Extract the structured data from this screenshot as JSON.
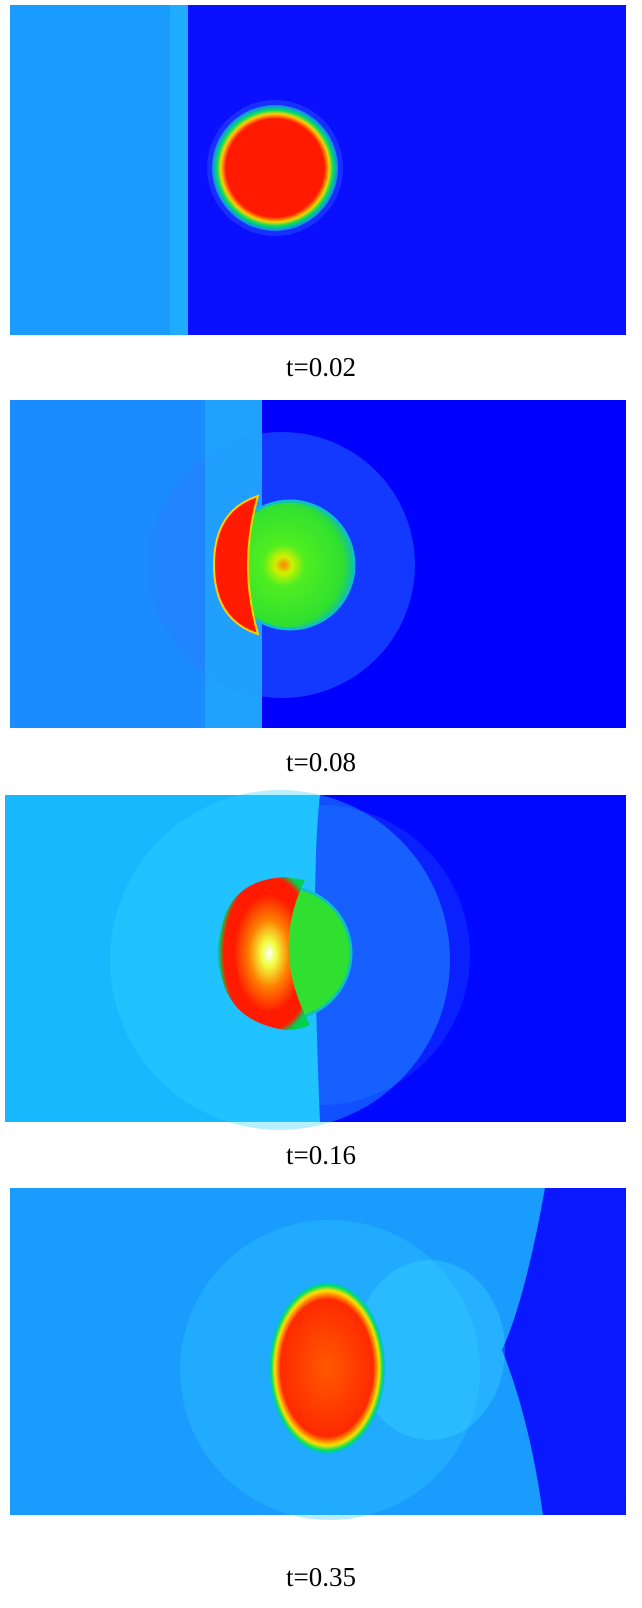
{
  "panels": [
    {
      "caption": "t=0.02"
    },
    {
      "caption": "t=0.08"
    },
    {
      "caption": "t=0.16"
    },
    {
      "caption": "t=0.35"
    }
  ]
}
